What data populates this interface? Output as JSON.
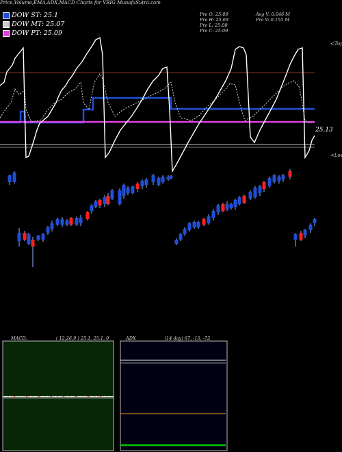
{
  "title": "Price,Volume,EMA,ADX,MACD Charts for VRIG MunafaSutra.com",
  "legend": [
    {
      "label": "DOW ST: 25.1",
      "color": "#1f4fd8"
    },
    {
      "label": "DOW MT: 25.07",
      "color": "#cccccc"
    },
    {
      "label": "DOW PT: 25.09",
      "color": "#e040e0"
    }
  ],
  "stats": {
    "prev_open": "Pre   O: 25.09",
    "prev_high": "Pre   H: 25.09",
    "prev_low": "Pre   L: 25.08",
    "prev_close": "Pre   C: 25.09",
    "avg_volume": "Avg V: 0.046   M",
    "prev_volume": "Pre   V: 0.155 M"
  },
  "price_label": "25.13",
  "axis_top": "<Tops",
  "axis_low": "<Lows",
  "colors": {
    "blue": "#1f4fd8",
    "magenta": "#e040e0",
    "red": "#ff2020",
    "orange": "#c8781e",
    "green": "#00c800"
  },
  "macd": {
    "title": "MACD:",
    "params": "( 12,26,9 ) 25.1, 25.1, 0"
  },
  "adx": {
    "title": "ADX",
    "params": "(14  day) 67, -15, -72"
  },
  "chart_data": [
    {
      "type": "line",
      "title": "Price,Volume,EMA,ADX,MACD Charts for VRIG",
      "x": [
        0,
        1,
        2,
        3,
        4,
        5,
        6,
        7,
        8,
        9,
        10,
        11,
        12,
        13,
        14,
        15,
        16,
        17,
        18,
        19,
        20,
        21,
        22,
        23,
        24,
        25,
        26,
        27,
        28,
        29,
        30,
        31,
        32,
        33,
        34,
        35,
        36,
        37,
        38,
        39,
        40,
        41,
        42,
        43,
        44,
        45,
        46,
        47,
        48,
        49,
        50,
        51,
        52,
        53,
        54,
        55,
        56,
        57,
        58,
        59,
        60,
        61,
        62,
        63,
        64,
        65,
        66,
        67,
        68,
        69,
        70,
        71,
        72,
        73,
        74,
        75,
        76,
        77,
        78,
        79,
        80,
        81,
        82,
        83,
        84,
        85,
        86,
        87,
        88,
        89,
        90,
        91,
        92
      ],
      "series": [
        {
          "name": "DOW ST",
          "values": [
            25.1,
            25.1,
            25.1,
            25.1,
            25.1,
            25.1,
            25.1,
            25.1,
            25.1,
            25.11,
            25.11,
            25.11,
            25.1,
            25.1,
            25.1,
            25.1,
            25.1,
            25.1,
            25.1,
            25.1,
            25.1,
            25.1,
            25.1,
            25.1,
            25.11,
            25.11,
            25.11,
            25.12,
            25.12,
            25.12,
            25.12,
            25.12,
            25.12,
            25.12,
            25.12,
            25.12,
            25.12,
            25.12,
            25.12,
            25.12,
            25.12,
            25.12,
            25.12,
            25.12,
            25.12,
            25.12,
            25.12,
            25.12,
            25.12,
            25.12,
            25.12,
            25.11,
            25.11,
            25.11,
            25.11,
            25.11,
            25.11,
            25.11,
            25.11,
            25.11,
            25.11,
            25.11,
            25.11,
            25.11,
            25.11,
            25.11,
            25.11,
            25.11,
            25.11,
            25.11,
            25.11,
            25.11,
            25.11,
            25.11,
            25.11,
            25.11,
            25.11,
            25.11,
            25.11,
            25.11,
            25.11,
            25.11,
            25.11,
            25.11,
            25.11,
            25.11,
            25.11,
            25.11,
            25.11,
            25.11,
            25.11,
            25.11,
            25.11
          ]
        },
        {
          "name": "DOW PT",
          "values": [
            25.09,
            25.09,
            25.09,
            25.09,
            25.09,
            25.09,
            25.09,
            25.09,
            25.09,
            25.09,
            25.09,
            25.09,
            25.09,
            25.09,
            25.09,
            25.09,
            25.09,
            25.09,
            25.09,
            25.09,
            25.09,
            25.09,
            25.09,
            25.09,
            25.09,
            25.09,
            25.09,
            25.09,
            25.09,
            25.09,
            25.09,
            25.09,
            25.09,
            25.09,
            25.09,
            25.09,
            25.09,
            25.09,
            25.09,
            25.09,
            25.09,
            25.09,
            25.09,
            25.09,
            25.09,
            25.09,
            25.09,
            25.09,
            25.09,
            25.09,
            25.09,
            25.09,
            25.09,
            25.09,
            25.09,
            25.09,
            25.09,
            25.09,
            25.09,
            25.09,
            25.09,
            25.09,
            25.09,
            25.09,
            25.09,
            25.09,
            25.09,
            25.09,
            25.09,
            25.09,
            25.09,
            25.09,
            25.09,
            25.09,
            25.09,
            25.09,
            25.09,
            25.09,
            25.09,
            25.09,
            25.09,
            25.09,
            25.09,
            25.09,
            25.09,
            25.09,
            25.09,
            25.09,
            25.09,
            25.09,
            25.09,
            25.09,
            25.09
          ]
        }
      ]
    },
    {
      "type": "line",
      "title": "MACD",
      "series": [
        {
          "name": "MACD",
          "values": [
            25.1,
            25.1,
            0
          ]
        }
      ]
    },
    {
      "type": "line",
      "title": "ADX",
      "series": [
        {
          "name": "ADX (14 day)",
          "values": [
            67,
            -15,
            -72
          ]
        }
      ]
    }
  ]
}
